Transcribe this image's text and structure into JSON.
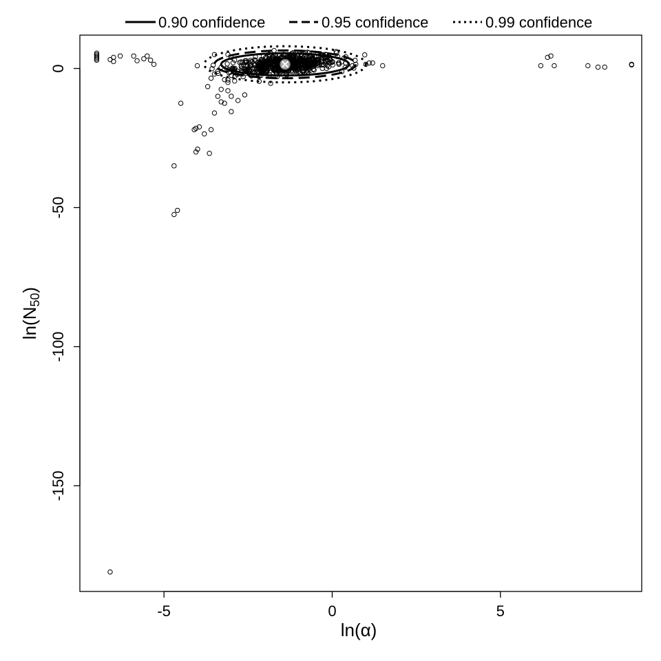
{
  "chart_data": {
    "type": "scatter",
    "xlabel": "ln(α)",
    "ylabel_main": "ln(N",
    "ylabel_sub": "50",
    "ylabel_close": ")",
    "xlim": [
      -7.5,
      9.2
    ],
    "ylim": [
      -188,
      12
    ],
    "xticks": [
      -5,
      0,
      5
    ],
    "xtick_labels": [
      "-5",
      "0",
      "5"
    ],
    "yticks": [
      0,
      -50,
      -100,
      -150
    ],
    "ytick_labels": [
      "0",
      "-50",
      "-100",
      "-150"
    ],
    "grid": false,
    "legend_placement": "top",
    "legend": [
      {
        "label": "0.90 confidence",
        "style": "solid"
      },
      {
        "label": "0.95 confidence",
        "style": "dashed"
      },
      {
        "label": "0.99 confidence",
        "style": "dotted"
      }
    ],
    "mle_point": {
      "x": -1.4,
      "y": 1.5
    },
    "ellipses": [
      {
        "level": "0.90",
        "cx": -1.4,
        "cy": 1.5,
        "rx": 1.9,
        "ry": 4.0,
        "style": "solid"
      },
      {
        "level": "0.95",
        "cx": -1.4,
        "cy": 1.5,
        "rx": 2.1,
        "ry": 5.0,
        "style": "dashed"
      },
      {
        "level": "0.99",
        "cx": -1.4,
        "cy": 1.5,
        "rx": 2.4,
        "ry": 6.5,
        "style": "dotted"
      }
    ],
    "points": [
      {
        "x": -7.0,
        "y": 5.5
      },
      {
        "x": -7.0,
        "y": 5.0
      },
      {
        "x": -7.0,
        "y": 4.5
      },
      {
        "x": -7.0,
        "y": 4.0
      },
      {
        "x": -7.0,
        "y": 3.5
      },
      {
        "x": -7.0,
        "y": 3.0
      },
      {
        "x": -6.6,
        "y": 3.2
      },
      {
        "x": -6.5,
        "y": 4.0
      },
      {
        "x": -6.5,
        "y": 2.5
      },
      {
        "x": -6.3,
        "y": 4.5
      },
      {
        "x": -5.9,
        "y": 4.5
      },
      {
        "x": -5.8,
        "y": 2.8
      },
      {
        "x": -5.6,
        "y": 3.5
      },
      {
        "x": -5.5,
        "y": 4.5
      },
      {
        "x": -5.4,
        "y": 3.0
      },
      {
        "x": -5.3,
        "y": 1.5
      },
      {
        "x": -4.5,
        "y": -12.5
      },
      {
        "x": -4.7,
        "y": -35.0
      },
      {
        "x": -4.7,
        "y": -52.5
      },
      {
        "x": -4.6,
        "y": -51.0
      },
      {
        "x": -4.1,
        "y": -22.0
      },
      {
        "x": -4.05,
        "y": -21.5
      },
      {
        "x": -3.95,
        "y": -21.0
      },
      {
        "x": -4.05,
        "y": -30.0
      },
      {
        "x": -4.0,
        "y": -29.0
      },
      {
        "x": -3.8,
        "y": -23.5
      },
      {
        "x": -3.6,
        "y": -22.0
      },
      {
        "x": -3.65,
        "y": -30.5
      },
      {
        "x": -3.7,
        "y": -6.5
      },
      {
        "x": -3.5,
        "y": -16.0
      },
      {
        "x": -3.4,
        "y": -10.0
      },
      {
        "x": -3.3,
        "y": -12.0
      },
      {
        "x": -3.2,
        "y": -12.5
      },
      {
        "x": -3.1,
        "y": -8.0
      },
      {
        "x": -3.0,
        "y": -10.0
      },
      {
        "x": -3.0,
        "y": -15.5
      },
      {
        "x": -2.8,
        "y": -11.5
      },
      {
        "x": -2.6,
        "y": -9.5
      },
      {
        "x": -3.3,
        "y": -7.5
      },
      {
        "x": -3.6,
        "y": -3.5
      },
      {
        "x": -3.5,
        "y": -2.0
      },
      {
        "x": -3.4,
        "y": -1.0
      },
      {
        "x": -3.3,
        "y": 0.5
      },
      {
        "x": -3.2,
        "y": -4.0
      },
      {
        "x": -3.1,
        "y": -5.0
      },
      {
        "x": -3.0,
        "y": -2.5
      },
      {
        "x": -2.9,
        "y": -4.5
      },
      {
        "x": -3.5,
        "y": 5.0
      },
      {
        "x": -3.1,
        "y": 5.0
      },
      {
        "x": -3.0,
        "y": 4.0
      },
      {
        "x": -2.9,
        "y": 3.0
      },
      {
        "x": 0.2,
        "y": 1.5
      },
      {
        "x": 0.4,
        "y": 2.0
      },
      {
        "x": 0.6,
        "y": 1.0
      },
      {
        "x": 0.7,
        "y": 1.5
      },
      {
        "x": 1.0,
        "y": 1.5
      },
      {
        "x": 1.1,
        "y": 2.0
      },
      {
        "x": 1.2,
        "y": 2.0
      },
      {
        "x": 1.5,
        "y": 1.0
      },
      {
        "x": 6.2,
        "y": 1.0
      },
      {
        "x": 6.4,
        "y": 4.0
      },
      {
        "x": 6.5,
        "y": 4.5
      },
      {
        "x": 6.6,
        "y": 1.0
      },
      {
        "x": 7.6,
        "y": 1.0
      },
      {
        "x": 7.9,
        "y": 0.5
      },
      {
        "x": 8.1,
        "y": 0.5
      },
      {
        "x": 8.9,
        "y": 1.5
      },
      {
        "x": 8.9,
        "y": 1.3
      },
      {
        "x": -6.6,
        "y": -181.0
      }
    ],
    "cluster": {
      "cx": -1.4,
      "cy": 1.5,
      "sx": 0.75,
      "sy": 1.6,
      "count": 650
    }
  }
}
